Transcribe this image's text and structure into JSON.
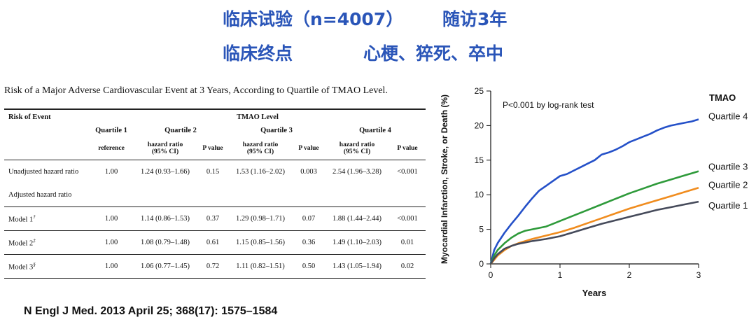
{
  "header": {
    "trial": "临床试验（n=4007）",
    "followup": "随访3年",
    "endpoint_label": "临床终点",
    "endpoints": "心梗、猝死、卒中",
    "color": "#2a55b8"
  },
  "table": {
    "caption": "Risk of a Major Adverse Cardiovascular Event at 3 Years, According to Quartile of TMAO Level.",
    "risk_of_event": "Risk of Event",
    "tmao_level": "TMAO Level",
    "quartiles": [
      "Quartile 1",
      "Quartile 2",
      "Quartile 3",
      "Quartile 4"
    ],
    "reference": "reference",
    "hr_label": "hazard ratio",
    "ci_label": "(95% CI)",
    "p_label": "P value",
    "adjusted_label": "Adjusted hazard ratio",
    "rows": [
      {
        "label": "Unadjusted hazard ratio",
        "note": "",
        "q1": "1.00",
        "q2": "1.24 (0.93–1.66)",
        "p2": "0.15",
        "q3": "1.53 (1.16–2.02)",
        "p3": "0.003",
        "q4": "2.54 (1.96–3.28)",
        "p4": "<0.001"
      },
      {
        "label": "Model 1",
        "note": "†",
        "q1": "1.00",
        "q2": "1.14 (0.86–1.53)",
        "p2": "0.37",
        "q3": "1.29 (0.98–1.71)",
        "p3": "0.07",
        "q4": "1.88 (1.44–2.44)",
        "p4": "<0.001"
      },
      {
        "label": "Model 2",
        "note": "‡",
        "q1": "1.00",
        "q2": "1.08 (0.79–1.48)",
        "p2": "0.61",
        "q3": "1.15 (0.85–1.56)",
        "p3": "0.36",
        "q4": "1.49 (1.10–2.03)",
        "p4": "0.01"
      },
      {
        "label": "Model 3",
        "note": "§",
        "q1": "1.00",
        "q2": "1.06 (0.77–1.45)",
        "p2": "0.72",
        "q3": "1.11 (0.82–1.51)",
        "p3": "0.50",
        "q4": "1.43 (1.05–1.94)",
        "p4": "0.02"
      }
    ]
  },
  "citation": "N Engl J Med. 2013 April 25; 368(17): 1575–1584",
  "chart_data": {
    "type": "line",
    "title": "",
    "annotation": "P<0.001 by log-rank test",
    "legend_title": "TMAO",
    "xlabel": "Years",
    "ylabel": "Myocardial Infarction, Stroke, or Death (%)",
    "xlim": [
      0,
      3
    ],
    "ylim": [
      0,
      25
    ],
    "xticks": [
      0,
      1,
      2,
      3
    ],
    "yticks": [
      0,
      5,
      10,
      15,
      20,
      25
    ],
    "series": [
      {
        "name": "Quartile 4",
        "color": "#2450c8",
        "x": [
          0,
          0.05,
          0.1,
          0.2,
          0.3,
          0.4,
          0.5,
          0.6,
          0.7,
          0.8,
          0.9,
          1.0,
          1.1,
          1.2,
          1.3,
          1.4,
          1.5,
          1.6,
          1.7,
          1.8,
          1.9,
          2.0,
          2.1,
          2.2,
          2.3,
          2.4,
          2.5,
          2.6,
          2.7,
          2.8,
          2.9,
          3.0
        ],
        "y": [
          0,
          2.0,
          3.0,
          4.5,
          5.8,
          7.0,
          8.3,
          9.5,
          10.6,
          11.3,
          12.0,
          12.7,
          13.0,
          13.5,
          14.0,
          14.5,
          15.0,
          15.8,
          16.1,
          16.5,
          17.0,
          17.6,
          18.0,
          18.4,
          18.8,
          19.3,
          19.7,
          20.0,
          20.2,
          20.4,
          20.6,
          20.9
        ]
      },
      {
        "name": "Quartile 3",
        "color": "#2e9a3a",
        "x": [
          0,
          0.05,
          0.1,
          0.2,
          0.3,
          0.4,
          0.5,
          0.6,
          0.7,
          0.8,
          0.9,
          1.0,
          1.2,
          1.4,
          1.6,
          1.8,
          2.0,
          2.2,
          2.4,
          2.6,
          2.8,
          2.9,
          3.0
        ],
        "y": [
          0,
          1.2,
          2.0,
          3.0,
          3.8,
          4.4,
          4.8,
          5.0,
          5.2,
          5.4,
          5.8,
          6.2,
          7.0,
          7.8,
          8.6,
          9.4,
          10.2,
          10.9,
          11.6,
          12.2,
          12.8,
          13.1,
          13.4
        ]
      },
      {
        "name": "Quartile 2",
        "color": "#f08c1e",
        "x": [
          0,
          0.05,
          0.1,
          0.2,
          0.3,
          0.4,
          0.5,
          0.6,
          0.8,
          1.0,
          1.2,
          1.4,
          1.6,
          1.8,
          2.0,
          2.2,
          2.4,
          2.6,
          2.8,
          3.0
        ],
        "y": [
          0,
          0.6,
          1.2,
          2.0,
          2.6,
          3.0,
          3.3,
          3.6,
          4.1,
          4.6,
          5.2,
          5.9,
          6.6,
          7.3,
          8.0,
          8.6,
          9.2,
          9.8,
          10.4,
          11.0
        ]
      },
      {
        "name": "Quartile 1",
        "color": "#454a5a",
        "x": [
          0,
          0.05,
          0.1,
          0.2,
          0.3,
          0.4,
          0.5,
          0.6,
          0.8,
          1.0,
          1.2,
          1.4,
          1.6,
          1.8,
          2.0,
          2.2,
          2.4,
          2.6,
          2.8,
          3.0
        ],
        "y": [
          0,
          0.8,
          1.4,
          2.2,
          2.6,
          2.9,
          3.1,
          3.3,
          3.6,
          4.0,
          4.6,
          5.2,
          5.8,
          6.3,
          6.8,
          7.3,
          7.8,
          8.2,
          8.6,
          9.0
        ]
      }
    ]
  }
}
